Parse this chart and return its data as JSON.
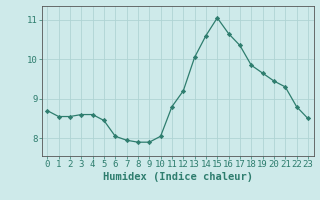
{
  "x": [
    0,
    1,
    2,
    3,
    4,
    5,
    6,
    7,
    8,
    9,
    10,
    11,
    12,
    13,
    14,
    15,
    16,
    17,
    18,
    19,
    20,
    21,
    22,
    23
  ],
  "y": [
    8.7,
    8.55,
    8.55,
    8.6,
    8.6,
    8.45,
    8.05,
    7.95,
    7.9,
    7.9,
    8.05,
    8.8,
    9.2,
    10.05,
    10.6,
    11.05,
    10.65,
    10.35,
    9.85,
    9.65,
    9.45,
    9.3,
    8.8,
    8.5
  ],
  "line_color": "#2e7d6e",
  "marker": "D",
  "marker_size": 2.2,
  "bg_color": "#ceeaea",
  "grid_color": "#afd4d4",
  "xlabel": "Humidex (Indice chaleur)",
  "ylim": [
    7.55,
    11.35
  ],
  "xlim": [
    -0.5,
    23.5
  ],
  "yticks": [
    8,
    9,
    10,
    11
  ],
  "xticks": [
    0,
    1,
    2,
    3,
    4,
    5,
    6,
    7,
    8,
    9,
    10,
    11,
    12,
    13,
    14,
    15,
    16,
    17,
    18,
    19,
    20,
    21,
    22,
    23
  ],
  "tick_fontsize": 6.5,
  "xlabel_fontsize": 7.5,
  "axis_color": "#2e7d6e",
  "spine_color": "#555555"
}
